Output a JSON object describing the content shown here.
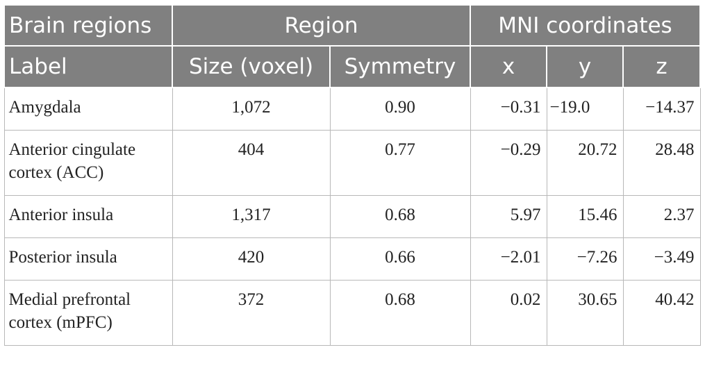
{
  "table": {
    "header_top": {
      "brain_regions": "Brain regions",
      "region": "Region",
      "mni": "MNI coordinates"
    },
    "header_bottom": {
      "label": "Label",
      "size": "Size (voxel)",
      "symmetry": "Symmetry",
      "x": "x",
      "y": "y",
      "z": "z"
    },
    "rows": [
      {
        "label": "Amygdala",
        "size": "1,072",
        "symmetry": "0.90",
        "x": "−0.31",
        "y": "−19.0",
        "z": "−14.37"
      },
      {
        "label": "Anterior cingulate cortex (ACC)",
        "size": "404",
        "symmetry": "0.77",
        "x": "−0.29",
        "y": "20.72",
        "z": "28.48"
      },
      {
        "label": "Anterior insula",
        "size": "1,317",
        "symmetry": "0.68",
        "x": "5.97",
        "y": "15.46",
        "z": "2.37"
      },
      {
        "label": "Posterior insula",
        "size": "420",
        "symmetry": "0.66",
        "x": "−2.01",
        "y": "−7.26",
        "z": "−3.49"
      },
      {
        "label": "Medial prefrontal cortex (mPFC)",
        "size": "372",
        "symmetry": "0.68",
        "x": "0.02",
        "y": "30.65",
        "z": "40.42"
      }
    ]
  }
}
